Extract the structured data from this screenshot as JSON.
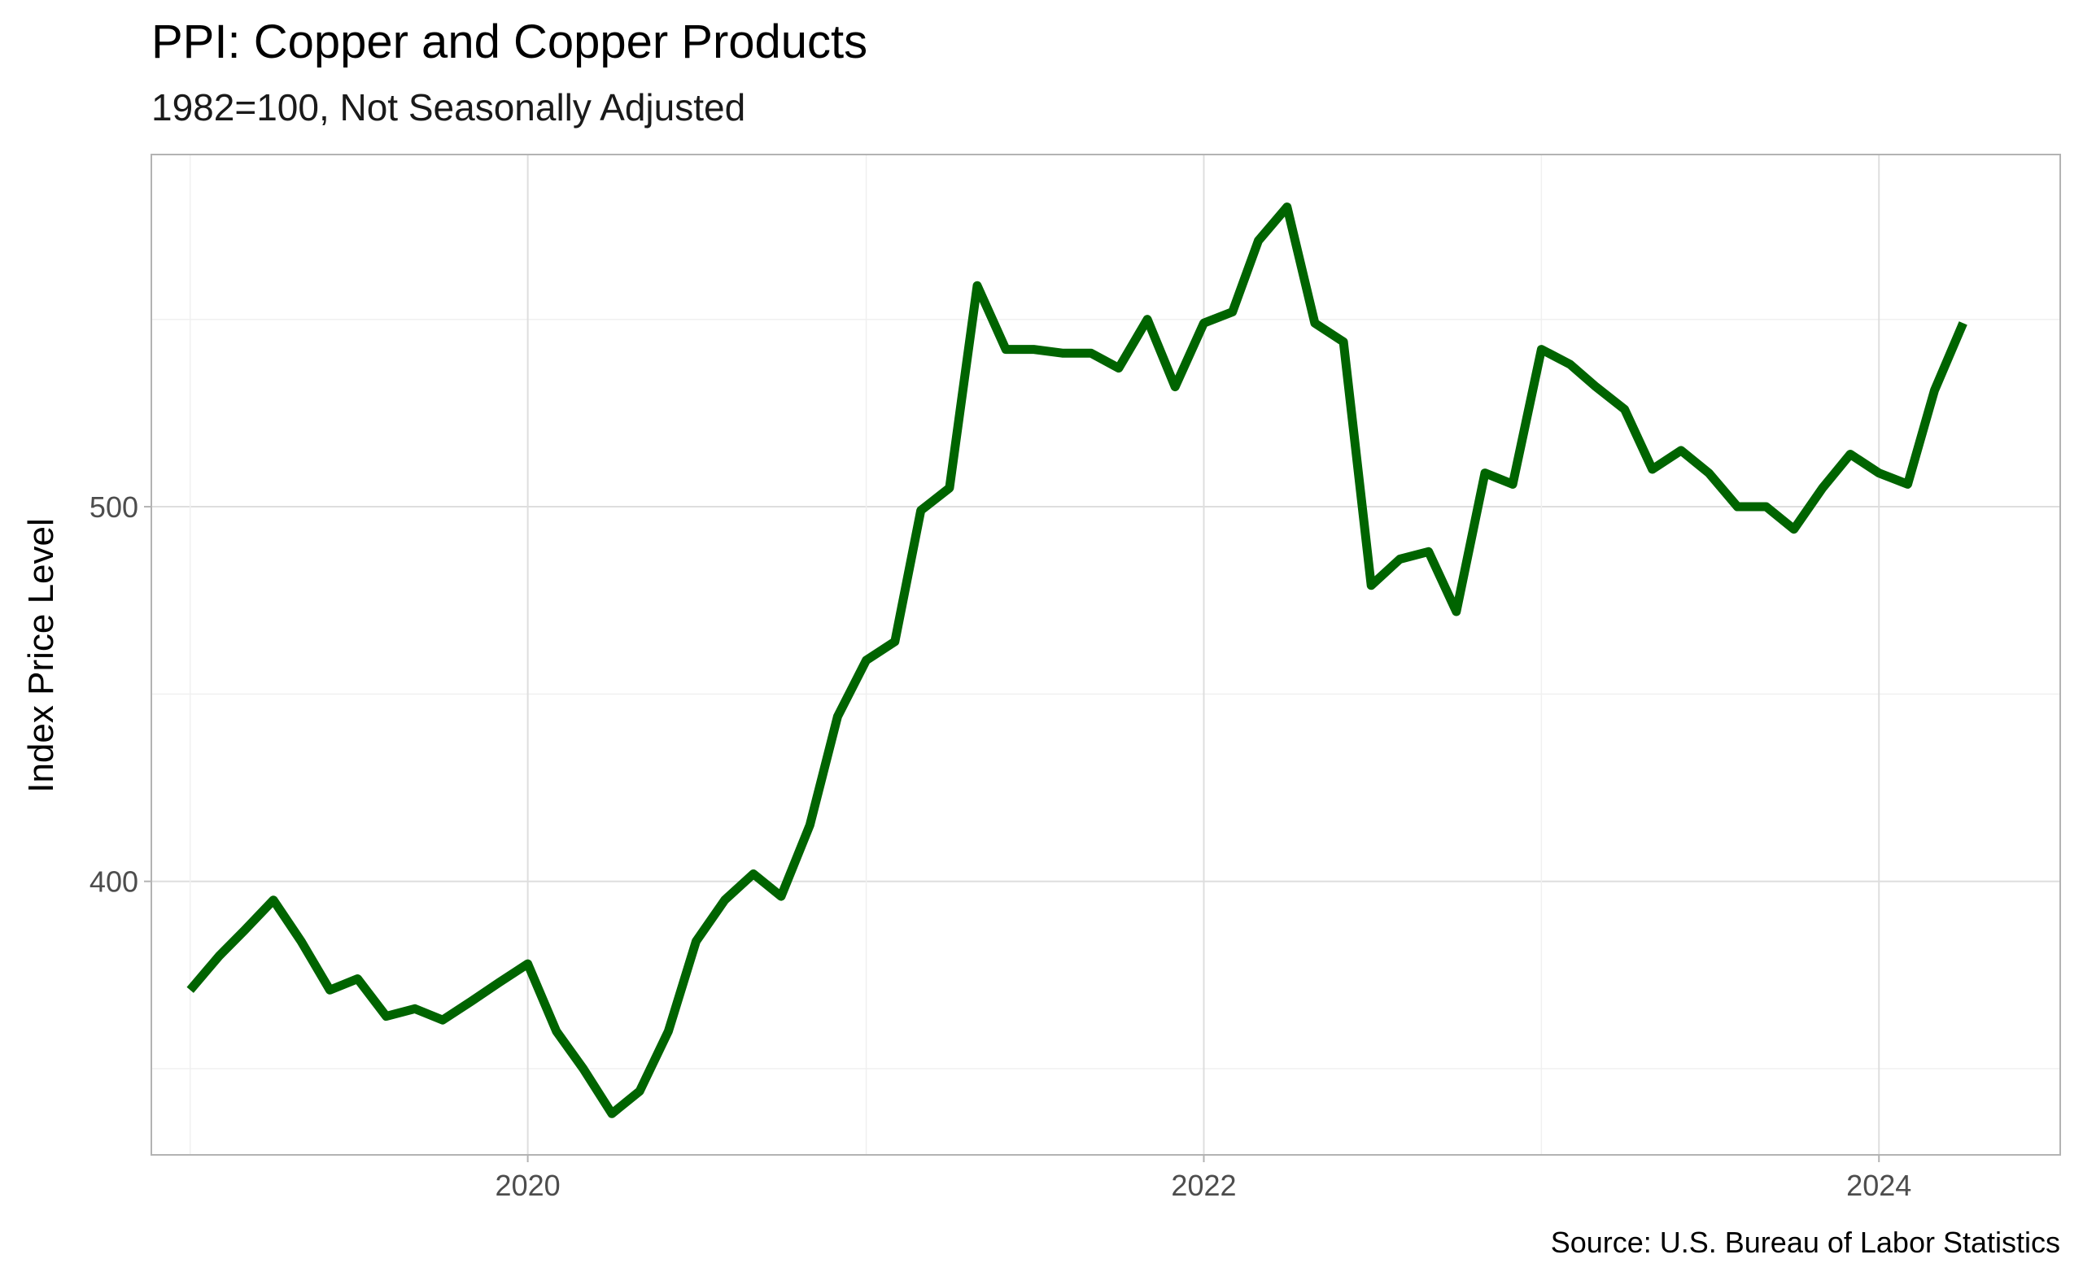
{
  "chart_data": {
    "type": "line",
    "title": "PPI: Copper and Copper Products",
    "subtitle": "1982=100, Not Seasonally Adjusted",
    "ylabel": "Index Price Level",
    "xlabel": "",
    "caption": "Source: U.S. Bureau of Labor Statistics",
    "x_ticks": [
      "2020",
      "2022",
      "2024"
    ],
    "y_ticks": [
      "400",
      "500"
    ],
    "ylim": [
      327,
      594
    ],
    "xlim": [
      "2018-11-20",
      "2024-07-15"
    ],
    "grid": true,
    "legend": "none",
    "line_color": "#006400",
    "series": [
      {
        "dates": [
          "2019-01",
          "2019-02",
          "2019-03",
          "2019-04",
          "2019-05",
          "2019-06",
          "2019-07",
          "2019-08",
          "2019-09",
          "2019-10",
          "2019-11",
          "2019-12",
          "2020-01",
          "2020-02",
          "2020-03",
          "2020-04",
          "2020-05",
          "2020-06",
          "2020-07",
          "2020-08",
          "2020-09",
          "2020-10",
          "2020-11",
          "2020-12",
          "2021-01",
          "2021-02",
          "2021-03",
          "2021-04",
          "2021-05",
          "2021-06",
          "2021-07",
          "2021-08",
          "2021-09",
          "2021-10",
          "2021-11",
          "2021-12",
          "2022-01",
          "2022-02",
          "2022-03",
          "2022-04",
          "2022-05",
          "2022-06",
          "2022-07",
          "2022-08",
          "2022-09",
          "2022-10",
          "2022-11",
          "2022-12",
          "2023-01",
          "2023-02",
          "2023-03",
          "2023-04",
          "2023-05",
          "2023-06",
          "2023-07",
          "2023-08",
          "2023-09",
          "2023-10",
          "2023-11",
          "2023-12",
          "2024-01",
          "2024-02",
          "2024-03",
          "2024-04"
        ],
        "values": [
          371,
          380,
          387,
          395,
          384,
          371,
          374,
          364,
          366,
          363,
          368,
          373,
          378,
          360,
          350,
          338,
          344,
          360,
          384,
          395,
          402,
          396,
          415,
          444,
          459,
          464,
          499,
          505,
          559,
          542,
          542,
          541,
          541,
          537,
          550,
          532,
          549,
          552,
          571,
          580,
          549,
          544,
          479,
          486,
          488,
          472,
          509,
          506,
          542,
          538,
          532,
          526,
          510,
          515,
          509,
          500,
          500,
          494,
          505,
          514,
          509,
          506,
          531,
          549
        ]
      }
    ]
  }
}
